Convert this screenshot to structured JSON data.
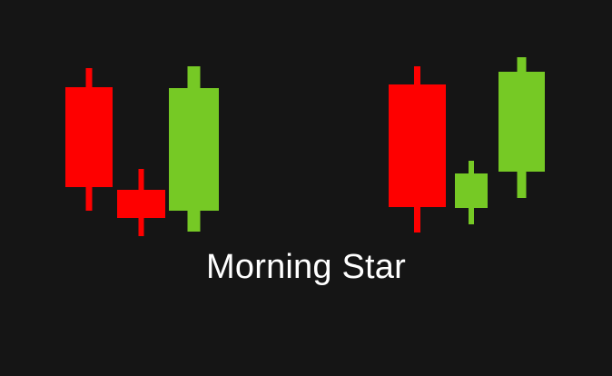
{
  "title": "Morning Star",
  "colors": {
    "background": "#151515",
    "bearish": "#fe0000",
    "bullish": "#76c925",
    "text": "#ffffff"
  },
  "patterns": [
    {
      "candles": [
        {
          "direction": "bearish",
          "size": "large"
        },
        {
          "direction": "bearish",
          "size": "small"
        },
        {
          "direction": "bullish",
          "size": "large"
        }
      ]
    },
    {
      "candles": [
        {
          "direction": "bearish",
          "size": "large"
        },
        {
          "direction": "bullish",
          "size": "small"
        },
        {
          "direction": "bullish",
          "size": "large"
        }
      ]
    }
  ]
}
